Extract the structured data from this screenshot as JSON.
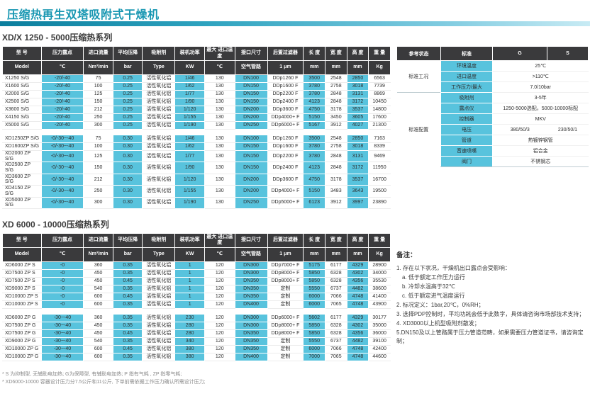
{
  "page": {
    "title": "压缩热再生双塔吸附式干燥机"
  },
  "colors": {
    "accent": "#1897b2",
    "header_bg": "#3a3a3c",
    "highlight_cell": "#58c3dd"
  },
  "table1": {
    "title": "XD/X 1250 - 5000压缩热系列",
    "headers": [
      "型 号",
      "压力露点",
      "进口流量",
      "平均压降",
      "吸附剂",
      "装机功率",
      "最大 进口温度",
      "接口尺寸",
      "后置过滤器",
      "长 度",
      "宽 度",
      "高 度",
      "重 量"
    ],
    "units": [
      "Model",
      "℃",
      "Nm³/min",
      "bar",
      "Type",
      "KW",
      "℃",
      "空气管路",
      "1 μm",
      "mm",
      "mm",
      "mm",
      "Kg"
    ],
    "groups": [
      {
        "rows": [
          [
            "X1250 S/G",
            "-20/-40",
            "75",
            "0.25",
            "活性氧化铝",
            "1/46",
            "130",
            "DN100",
            "DDp1260 F",
            "3500",
            "2548",
            "2850",
            "6563"
          ],
          [
            "X1600 S/G",
            "-20/-40",
            "100",
            "0.25",
            "活性氧化铝",
            "1/62",
            "130",
            "DN150",
            "DDp1600 F",
            "3780",
            "2758",
            "3018",
            "7739"
          ],
          [
            "X2000 S/G",
            "-20/-40",
            "125",
            "0.25",
            "活性氧化铝",
            "1/77",
            "130",
            "DN150",
            "DDp2200 F",
            "3780",
            "2848",
            "3131",
            "8869"
          ],
          [
            "X2500 S/G",
            "-20/-40",
            "150",
            "0.25",
            "活性氧化铝",
            "1/90",
            "130",
            "DN150",
            "DDp2400 F",
            "4123",
            "2848",
            "3172",
            "10450"
          ],
          [
            "X3600 S/G",
            "-20/-40",
            "212",
            "0.25",
            "活性氧化铝",
            "1/120",
            "130",
            "DN200",
            "DDp3600 F",
            "4750",
            "3178",
            "3537",
            "14800"
          ],
          [
            "X4150 S/G",
            "-20/-40",
            "250",
            "0.25",
            "活性氧化铝",
            "1/155",
            "130",
            "DN200",
            "DDp4000+ F",
            "5150",
            "3450",
            "3605",
            "17600"
          ],
          [
            "X5000 S/G",
            "-20/-40",
            "300",
            "0.25",
            "活性氧化铝",
            "1/190",
            "130",
            "DN250",
            "DDp6000+ F",
            "5167",
            "3912",
            "4027",
            "21300"
          ]
        ]
      },
      {
        "rows": [
          [
            "XD1250ZP S/G",
            "-0/-30~-40",
            "75",
            "0.30",
            "活性氧化铝",
            "1/46",
            "130",
            "DN100",
            "DDp1260 F",
            "3500",
            "2548",
            "2850",
            "7163"
          ],
          [
            "XD1600ZP S/G",
            "-0/-30~-40",
            "100",
            "0.30",
            "活性氧化铝",
            "1/62",
            "130",
            "DN150",
            "DDp1600 F",
            "3780",
            "2758",
            "3018",
            "8339"
          ],
          [
            "XD2000 ZP S/G",
            "-0/-30~-40",
            "125",
            "0.30",
            "活性氧化铝",
            "1/77",
            "130",
            "DN150",
            "DDp2200 F",
            "3780",
            "2848",
            "3131",
            "9469"
          ],
          [
            "XD2500 ZP S/G",
            "-0/-30~-40",
            "150",
            "0.30",
            "活性氧化铝",
            "1/90",
            "130",
            "DN150",
            "DDp2400 F",
            "4123",
            "2848",
            "3172",
            "11950"
          ],
          [
            "XD3600 ZP S/G",
            "-0/-30~-40",
            "212",
            "0.30",
            "活性氧化铝",
            "1/120",
            "130",
            "DN200",
            "DDp3600 F",
            "4750",
            "3178",
            "3537",
            "16700"
          ],
          [
            "XD4150 ZP S/G",
            "-0/-30~-40",
            "250",
            "0.30",
            "活性氧化铝",
            "1/155",
            "130",
            "DN200",
            "DDp4000+ F",
            "5150",
            "3483",
            "3643",
            "19500"
          ],
          [
            "XD5000 ZP S/G",
            "-0/-30~-40",
            "300",
            "0.30",
            "活性氧化铝",
            "1/190",
            "130",
            "DN250",
            "DDp5000+ F",
            "6123",
            "3912",
            "3997",
            "23890"
          ]
        ]
      }
    ]
  },
  "table2": {
    "title": "XD 6000 - 10000压缩热系列",
    "headers": [
      "型 号",
      "压力露点",
      "进口流量",
      "平均压降",
      "吸附剂",
      "装机功率",
      "最大 进口温度",
      "接口尺寸",
      "后置过滤器",
      "长 度",
      "宽 度",
      "高 度",
      "重 量"
    ],
    "units": [
      "Model",
      "℃",
      "Nm³/min",
      "bar",
      "Type",
      "KW",
      "℃",
      "空气管路",
      "1 μm",
      "mm",
      "mm",
      "mm",
      "Kg"
    ],
    "groups": [
      {
        "rows": [
          [
            "XD6000 ZP S",
            "-0",
            "360",
            "0.35",
            "活性氧化铝",
            "1",
            "120",
            "DN300",
            "DDp7000+ F",
            "5175",
            "6177",
            "4329",
            "28900"
          ],
          [
            "XD7500 ZP S",
            "-0",
            "450",
            "0.35",
            "活性氧化铝",
            "1",
            "120",
            "DN300",
            "DDp8000+ F",
            "5850",
            "6328",
            "4302",
            "34000"
          ],
          [
            "XD7500 ZP S",
            "-0",
            "450",
            "0.45",
            "活性氧化铝",
            "1",
            "120",
            "DN350",
            "DDp8000+ F",
            "5850",
            "6328",
            "4356",
            "35530"
          ],
          [
            "XD9000 ZP S",
            "-0",
            "540",
            "0.35",
            "活性氧化铝",
            "1",
            "120",
            "DN350",
            "定制",
            "5550",
            "6737",
            "4482",
            "38600"
          ],
          [
            "XD10000 ZP S",
            "-0",
            "600",
            "0.45",
            "活性氧化铝",
            "1",
            "120",
            "DN350",
            "定制",
            "6000",
            "7066",
            "4748",
            "41400"
          ],
          [
            "XD10000 ZP S",
            "-0",
            "600",
            "0.35",
            "活性氧化铝",
            "1",
            "120",
            "DN400",
            "定制",
            "6000",
            "7065",
            "4748",
            "43900"
          ]
        ]
      },
      {
        "rows": [
          [
            "XD6000 ZP G",
            "-30~-40",
            "360",
            "0.35",
            "活性氧化铝",
            "230",
            "120",
            "DN300",
            "DDp6000+ F",
            "5602",
            "6177",
            "4329",
            "30177"
          ],
          [
            "XD7500 ZP G",
            "-30~-40",
            "450",
            "0.35",
            "活性氧化铝",
            "280",
            "120",
            "DN300",
            "DDp8000+ F",
            "5850",
            "6328",
            "4302",
            "35000"
          ],
          [
            "XD7500 ZP G",
            "-30~-40",
            "450",
            "0.45",
            "活性氧化铝",
            "280",
            "120",
            "DN350",
            "DDp8000+ F",
            "5850",
            "6328",
            "4356",
            "36000"
          ],
          [
            "XD9000 ZP G",
            "-30~-40",
            "540",
            "0.35",
            "活性氧化铝",
            "340",
            "120",
            "DN350",
            "定制",
            "5550",
            "6737",
            "4482",
            "39100"
          ],
          [
            "XD10000 ZP G",
            "-30~-40",
            "600",
            "0.45",
            "活性氧化铝",
            "380",
            "120",
            "DN350",
            "定制",
            "6000",
            "7066",
            "4748",
            "42400"
          ],
          [
            "XD10000 ZP G",
            "-30~-40",
            "600",
            "0.35",
            "活性氧化铝",
            "380",
            "120",
            "DN400",
            "定制",
            "7000",
            "7065",
            "4748",
            "44600"
          ]
        ]
      }
    ]
  },
  "spec_panel": {
    "headers": [
      "参考状态",
      "标准",
      "G",
      "S"
    ],
    "sections": [
      {
        "label": "标准工况",
        "rows": [
          {
            "name": "环境温度",
            "value": "25℃"
          },
          {
            "name": "进口温度",
            "value": ">110℃"
          },
          {
            "name": "工作压力/最大",
            "value": "7.0/10bar"
          }
        ]
      },
      {
        "label": "标准配置",
        "rows": [
          {
            "name": "吸附剂",
            "value": "3-5年"
          },
          {
            "name": "露点仪",
            "value": "1250-5000选配，5000-10000标配"
          },
          {
            "name": "控制器",
            "value": "MKV"
          },
          {
            "name": "电压",
            "g": "380/50/3",
            "s": "230/50/1"
          },
          {
            "name": "管道",
            "value": "热镀锌钢管"
          },
          {
            "name": "音速喷嘴",
            "value": "铝合金"
          },
          {
            "name": "阀门",
            "value": "不锈钢芯"
          }
        ]
      }
    ]
  },
  "notes": {
    "title": "备注：",
    "items": [
      {
        "text": "1. 存在以下状况，干燥机出口露点会受影响：",
        "indent": false
      },
      {
        "text": "a. 低于额定工作压力运行",
        "indent": true
      },
      {
        "text": "b. 冷却水温高于32℃",
        "indent": true
      },
      {
        "text": "c. 低于额定进气温度运行",
        "indent": true
      },
      {
        "text": "2. 标况定义：1bar,20℃，0%RH；",
        "indent": false
      },
      {
        "text": "3. 选择PDP控制时，平均功耗会低于此数字，具体请咨询市场部技术支持；",
        "indent": false
      },
      {
        "text": "4. XD3000以上机型吸附剂散发；",
        "indent": false
      },
      {
        "text": "5.DN150及以上管路属于压力管道范畴，如果需要压力管道证书，请咨询定制；",
        "indent": false
      }
    ]
  },
  "footnotes": [
    "* S 为抑制型, 无辅助电加热; G为保障型, 有辅助电加热; P 指有气耗 , ZP 指零气耗;",
    "* XD6000-10000 容器设计压力分7.5公斤和11公斤, 下单前需依据工作压力确认所需设计压力;"
  ]
}
